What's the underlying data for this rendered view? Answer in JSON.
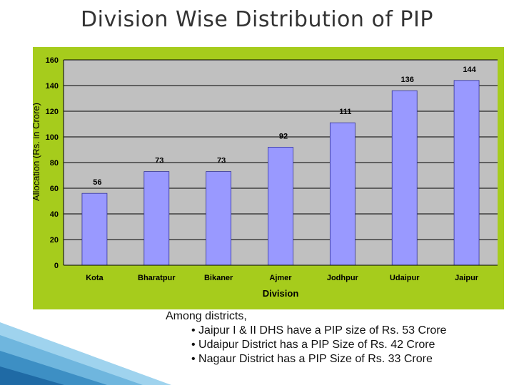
{
  "slide": {
    "title": "Division Wise Distribution of PIP"
  },
  "chart_data": {
    "type": "bar",
    "title": "",
    "xlabel": "Division",
    "ylabel": "Allocation (Rs. in Crore)",
    "categories": [
      "Kota",
      "Bharatpur",
      "Bikaner",
      "Ajmer",
      "Jodhpur",
      "Udaipur",
      "Jaipur"
    ],
    "values": [
      56,
      73,
      73,
      92,
      111,
      136,
      144
    ],
    "data_labels": [
      "56",
      "73",
      "73",
      "92",
      "111",
      "136",
      "144"
    ],
    "ylim": [
      0,
      160
    ],
    "yticks": [
      0,
      20,
      40,
      60,
      80,
      100,
      120,
      140,
      160
    ],
    "grid": true,
    "legend": "none",
    "colors": {
      "bar": "#9999ff",
      "plot_area": "#c0c0c0",
      "frame": "#a6cc1c",
      "gridline": "#000000"
    }
  },
  "notes": {
    "intro": "Among districts,",
    "bullets": [
      "• Jaipur I & II DHS have a PIP size of Rs. 53 Crore",
      "• Udaipur District has a PIP Size of Rs. 42 Crore",
      "• Nagaur District has a PIP Size of Rs. 33 Crore"
    ]
  }
}
